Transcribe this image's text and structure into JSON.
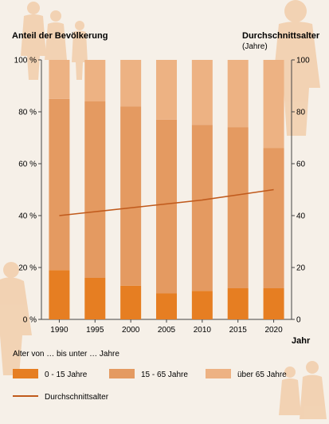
{
  "chart_data": {
    "type": "bar",
    "stacked": true,
    "categories": [
      "1990",
      "1995",
      "2000",
      "2005",
      "2010",
      "2015",
      "2020"
    ],
    "series": [
      {
        "name": "0 - 15 Jahre",
        "values": [
          19,
          16,
          13,
          10,
          11,
          12,
          12
        ],
        "color": "#e67e22"
      },
      {
        "name": "15 - 65 Jahre",
        "values": [
          66,
          68,
          69,
          67,
          64,
          62,
          54
        ],
        "color": "#e49a61"
      },
      {
        "name": "über 65 Jahre",
        "values": [
          15,
          16,
          18,
          23,
          25,
          26,
          34
        ],
        "color": "#edb283"
      }
    ],
    "line_series": {
      "name": "Durchschnittsalter",
      "values": [
        40,
        41.5,
        43,
        44.5,
        46,
        48,
        50
      ],
      "color": "#c05a1c"
    },
    "left_axis": {
      "label": "Anteil der Bevölkerung",
      "ticks": [
        "0 %",
        "20 %",
        "40 %",
        "60 %",
        "80 %",
        "100 %"
      ],
      "range": [
        0,
        100
      ]
    },
    "right_axis": {
      "label": "Durchschnittsalter",
      "sublabel": "(Jahre)",
      "ticks": [
        "0",
        "20",
        "40",
        "60",
        "80",
        "100"
      ],
      "range": [
        0,
        100
      ]
    },
    "xlabel": "Jahr",
    "legend_title": "Alter von … bis unter … Jahre",
    "legend_placement": "bottom",
    "grid": false
  }
}
